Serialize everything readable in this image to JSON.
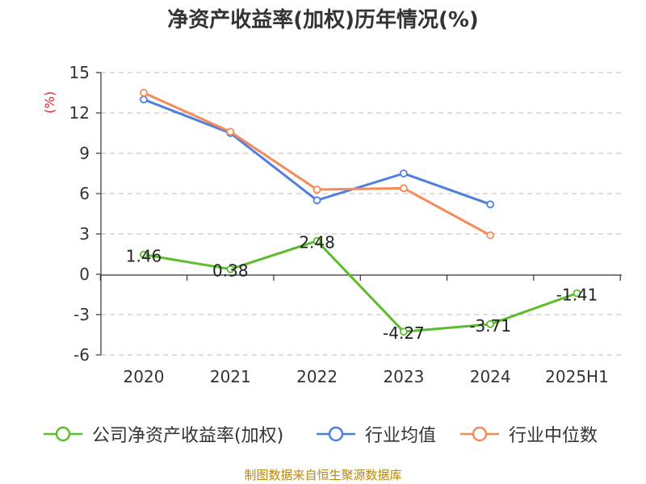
{
  "title": "净资产收益率(加权)历年情况(%)",
  "footer": "制图数据来自恒生聚源数据库",
  "colors": {
    "company": "#5bbd2b",
    "industry_avg": "#4f7fde",
    "industry_median": "#f48b58",
    "axis": "#333333",
    "grid": "#bbbbbb"
  },
  "chart_data": {
    "type": "line",
    "title": "净资产收益率(加权)历年情况(%)",
    "ylabel": "(%)",
    "xlabel": "",
    "categories": [
      "2020",
      "2021",
      "2022",
      "2023",
      "2024",
      "2025H1"
    ],
    "ylim": [
      -6,
      15
    ],
    "yticks": [
      -6,
      -3,
      0,
      3,
      6,
      9,
      12,
      15
    ],
    "grid": true,
    "legend_position": "bottom",
    "series": [
      {
        "name": "公司净资产收益率(加权)",
        "values": [
          1.46,
          0.38,
          2.48,
          -4.27,
          -3.71,
          -1.41
        ],
        "labels": [
          "1.46",
          "0.38",
          "2.48",
          "-4.27",
          "-3.71",
          "-1.41"
        ]
      },
      {
        "name": "行业均值",
        "values": [
          13.0,
          10.5,
          5.5,
          7.5,
          5.2,
          null
        ]
      },
      {
        "name": "行业中位数",
        "values": [
          13.5,
          10.6,
          6.3,
          6.4,
          2.9,
          null
        ]
      }
    ]
  }
}
